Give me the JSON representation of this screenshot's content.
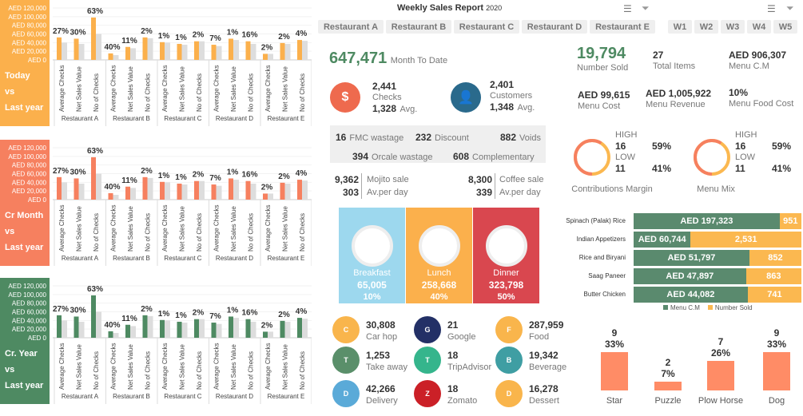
{
  "left_charts": {
    "y_ticks": [
      "AED 120,000",
      "AED 100,000",
      "AED 80,000",
      "AED 60,000",
      "AED 40,000",
      "AED 20,000",
      "AED 0"
    ],
    "restaurants": [
      "Restaurant A",
      "Restaurant B",
      "Restaurant C",
      "Restaurant D",
      "Restaurant E"
    ],
    "metrics": [
      "Average Checks",
      "Net Sales Value",
      "No of Checks"
    ],
    "panels": [
      {
        "label": [
          "Today",
          "vs",
          "Last year"
        ],
        "color": "#fbb04c"
      },
      {
        "label": [
          "Cr Month",
          "vs",
          "Last year"
        ],
        "color": "#f6805f"
      },
      {
        "label": [
          "Cr. Year",
          "vs",
          "Last year"
        ],
        "color": "#4e8a62"
      }
    ],
    "chart_data": {
      "type": "bar",
      "ylim": [
        0,
        120000
      ],
      "current": [
        [
          52000,
          49000,
          98000
        ],
        [
          15000,
          30000,
          52000
        ],
        [
          41000,
          37000,
          43000
        ],
        [
          35000,
          49000,
          43000
        ],
        [
          14000,
          39000,
          46000
        ]
      ],
      "last_year": [
        [
          40000,
          37000,
          60000
        ],
        [
          11000,
          27000,
          50000
        ],
        [
          40000,
          35000,
          43000
        ],
        [
          32000,
          46000,
          37000
        ],
        [
          14000,
          37000,
          44000
        ]
      ],
      "data_labels": [
        [
          "27%",
          "30%",
          "63%"
        ],
        [
          "40%",
          "11%",
          "2%"
        ],
        [
          "1%",
          "1%",
          "2%"
        ],
        [
          "7%",
          "1%",
          "16%"
        ],
        [
          "2%",
          "2%",
          "4%"
        ]
      ]
    }
  },
  "header": {
    "title": "Weekly Sales Report",
    "year": "2020"
  },
  "restaurant_slicer": [
    "Restaurant A",
    "Restaurant B",
    "Restaurant C",
    "Restaurant D",
    "Restaurant E"
  ],
  "week_slicer": [
    "W1",
    "W2",
    "W3",
    "W4",
    "W5"
  ],
  "mtd": {
    "value": "647,471",
    "label": "Month To Date"
  },
  "checks": {
    "value": "2,441",
    "label": "Checks",
    "avg": "1,328",
    "avg_label": "Avg."
  },
  "customers": {
    "value": "2,401",
    "label": "Customers",
    "avg": "1,348",
    "avg_label": "Avg."
  },
  "wastage": [
    {
      "v": "16",
      "l": "FMC wastage"
    },
    {
      "v": "232",
      "l": "Discount"
    },
    {
      "v": "882",
      "l": "Voids"
    },
    {
      "v": "394",
      "l": "Orcale wastage"
    },
    {
      "v": "608",
      "l": "Complementary"
    }
  ],
  "mojito": {
    "v": "9,362",
    "l": "Mojito sale",
    "avg": "303",
    "avg_l": "Av.per day"
  },
  "coffee": {
    "v": "8,300",
    "l": "Coffee sale",
    "avg": "339",
    "avg_l": "Av.per day"
  },
  "meals": [
    {
      "name": "Breakfast",
      "value": "65,005",
      "pct": "10%",
      "color": "#9dd8ee"
    },
    {
      "name": "Lunch",
      "value": "258,668",
      "pct": "40%",
      "color": "#fbb04c"
    },
    {
      "name": "Dinner",
      "value": "323,798",
      "pct": "50%",
      "color": "#d9474f"
    }
  ],
  "channels": [
    {
      "v": "30,808",
      "l": "Car hop",
      "color": "#f9b54c"
    },
    {
      "v": "1,253",
      "l": "Take away",
      "color": "#5a8f6a"
    },
    {
      "v": "42,266",
      "l": "Delivery",
      "color": "#5aaad8"
    },
    {
      "v": "21",
      "l": "Google",
      "color": "#233066"
    },
    {
      "v": "18",
      "l": "TripAdvisor",
      "color": "#35b58c"
    },
    {
      "v": "18",
      "l": "Zomato",
      "color": "#cb2027"
    },
    {
      "v": "287,959",
      "l": "Food",
      "color": "#f9b54c"
    },
    {
      "v": "19,342",
      "l": "Beverage",
      "color": "#3f9ea3"
    },
    {
      "v": "16,278",
      "l": "Dessert",
      "color": "#f9b54c"
    }
  ],
  "kpis": {
    "number_sold": "19,794",
    "number_sold_l": "Number Sold",
    "total_items": "27",
    "total_items_l": "Total Items",
    "menu_cm": "AED 906,307",
    "menu_cm_l": "Menu C.M",
    "menu_cost": "AED 99,615",
    "menu_cost_l": "Menu Cost",
    "menu_rev": "AED 1,005,922",
    "menu_rev_l": "Menu Revenue",
    "food_cost": "10%",
    "food_cost_l": "Menu Food Cost"
  },
  "donuts": [
    {
      "title": "Contributions Margin",
      "high_l": "HIGH",
      "high": "16",
      "high_p": "59%",
      "low_l": "LOW",
      "low": "11",
      "low_p": "41%",
      "high_frac": 0.59
    },
    {
      "title": "Menu Mix",
      "high_l": "HIGH",
      "high": "16",
      "high_p": "59%",
      "low_l": "LOW",
      "low": "11",
      "low_p": "41%",
      "high_frac": 0.59
    }
  ],
  "top_items": {
    "legend": [
      "Menu C.M",
      "Number Sold"
    ],
    "colors": [
      "#5a8a6e",
      "#fbb850"
    ],
    "rows": [
      {
        "name": "Spinach (Palak) Rice",
        "cm": "AED 197,323",
        "sold": "951",
        "cm_frac": 0.87
      },
      {
        "name": "Indian Appetizers",
        "cm": "AED 60,744",
        "sold": "2,531",
        "cm_frac": 0.34
      },
      {
        "name": "Rice and Biryani",
        "cm": "AED 51,797",
        "sold": "852",
        "cm_frac": 0.69
      },
      {
        "name": "Saag Paneer",
        "cm": "AED 47,897",
        "sold": "863",
        "cm_frac": 0.67
      },
      {
        "name": "Butter Chicken",
        "cm": "AED 44,082",
        "sold": "741",
        "cm_frac": 0.68
      }
    ]
  },
  "menu_matrix": {
    "chart_data": {
      "type": "bar",
      "categories": [
        "Star",
        "Puzzle",
        "Plow Horse",
        "Dog"
      ],
      "values": [
        9,
        2,
        7,
        9
      ],
      "labels": [
        "33%",
        "7%",
        "26%",
        "33%"
      ]
    }
  }
}
